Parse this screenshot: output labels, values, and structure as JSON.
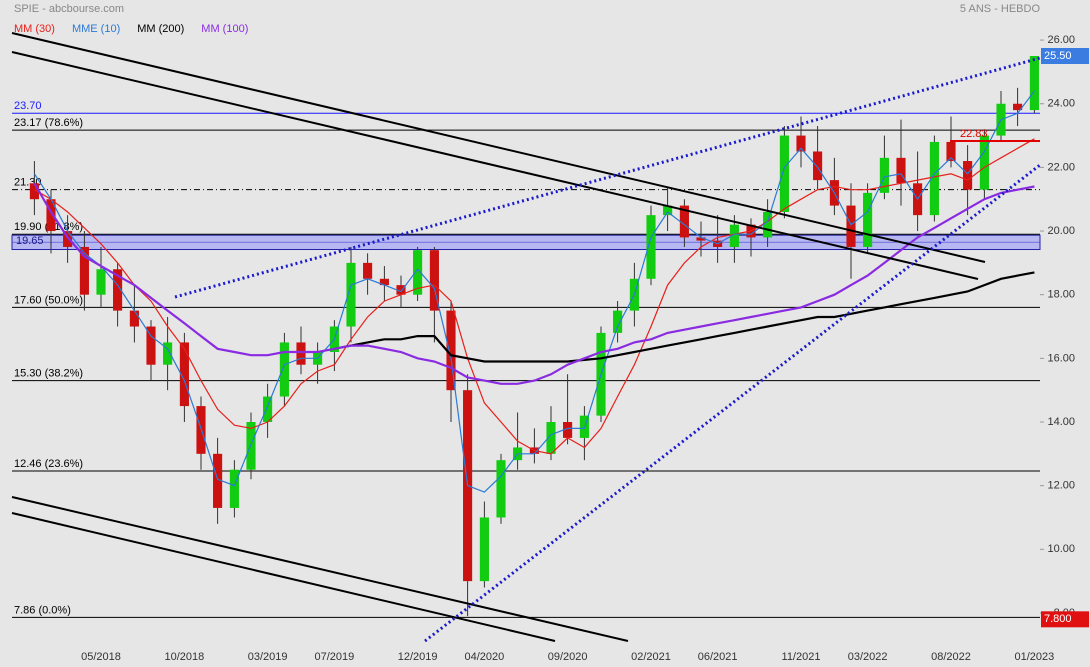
{
  "chart_data": {
    "type": "candlestick",
    "title": "SPIE - abcbourse.com",
    "subtitle": "5 ANS - HEBDO",
    "up_color": "#11cc11",
    "down_color": "#cc1111",
    "x": [
      2018.042,
      2018.125,
      2018.208,
      2018.292,
      2018.375,
      2018.458,
      2018.542,
      2018.625,
      2018.708,
      2018.792,
      2018.875,
      2018.958,
      2019.042,
      2019.125,
      2019.208,
      2019.292,
      2019.375,
      2019.458,
      2019.542,
      2019.625,
      2019.708,
      2019.792,
      2019.875,
      2019.958,
      2020.042,
      2020.125,
      2020.208,
      2020.292,
      2020.375,
      2020.458,
      2020.542,
      2020.625,
      2020.708,
      2020.792,
      2020.875,
      2020.958,
      2021.042,
      2021.125,
      2021.208,
      2021.292,
      2021.375,
      2021.458,
      2021.542,
      2021.625,
      2021.708,
      2021.792,
      2021.875,
      2021.958,
      2022.042,
      2022.125,
      2022.208,
      2022.292,
      2022.375,
      2022.458,
      2022.542,
      2022.625,
      2022.708,
      2022.792,
      2022.875,
      2022.958,
      2023.042
    ],
    "open": [
      21.5,
      21.0,
      20.0,
      19.5,
      18.0,
      18.8,
      17.5,
      17.0,
      15.8,
      16.5,
      14.5,
      13.0,
      11.3,
      12.5,
      14.0,
      14.8,
      16.5,
      15.8,
      16.2,
      17.0,
      19.0,
      18.5,
      18.3,
      18.0,
      19.4,
      17.5,
      15.0,
      9.0,
      11.0,
      12.8,
      13.2,
      13.0,
      14.0,
      13.5,
      14.2,
      16.8,
      17.5,
      18.5,
      20.5,
      20.8,
      19.8,
      19.7,
      19.5,
      20.2,
      19.8,
      20.6,
      23.0,
      22.5,
      21.6,
      20.8,
      19.5,
      21.2,
      22.3,
      21.5,
      20.5,
      22.8,
      22.2,
      21.3,
      23.0,
      24.0,
      23.8
    ],
    "high": [
      22.2,
      21.3,
      20.5,
      20.0,
      19.5,
      19.0,
      18.3,
      17.2,
      17.3,
      16.8,
      14.8,
      13.5,
      12.8,
      14.3,
      15.2,
      16.8,
      17.0,
      16.5,
      17.2,
      19.5,
      19.3,
      18.9,
      18.6,
      19.5,
      19.5,
      17.8,
      15.5,
      11.5,
      13.0,
      14.3,
      13.8,
      14.5,
      15.5,
      14.5,
      17.0,
      17.8,
      19.0,
      20.8,
      21.4,
      21.0,
      20.3,
      20.5,
      20.5,
      20.4,
      21.0,
      23.3,
      23.6,
      23.3,
      22.3,
      21.5,
      21.5,
      23.0,
      23.5,
      22.5,
      23.0,
      23.6,
      22.7,
      23.2,
      24.4,
      24.5,
      25.5
    ],
    "low": [
      20.5,
      19.3,
      19.0,
      17.5,
      17.6,
      17.0,
      16.5,
      15.3,
      15.0,
      14.0,
      12.5,
      10.8,
      11.0,
      12.2,
      13.5,
      14.5,
      15.5,
      15.2,
      15.6,
      16.5,
      18.0,
      17.8,
      17.6,
      17.8,
      16.5,
      14.0,
      7.9,
      8.8,
      10.8,
      12.5,
      12.7,
      12.8,
      13.3,
      12.8,
      14.0,
      16.5,
      17.0,
      18.3,
      20.0,
      19.5,
      19.2,
      19.0,
      19.0,
      19.2,
      19.5,
      20.4,
      22.0,
      21.3,
      20.5,
      18.5,
      19.3,
      21.0,
      20.8,
      20.0,
      20.3,
      22.0,
      20.5,
      21.0,
      22.8,
      23.3,
      23.7
    ],
    "close": [
      21.0,
      20.0,
      19.5,
      18.0,
      18.8,
      17.5,
      17.0,
      15.8,
      16.5,
      14.5,
      13.0,
      11.3,
      12.5,
      14.0,
      14.8,
      16.5,
      15.8,
      16.2,
      17.0,
      19.0,
      18.5,
      18.3,
      18.0,
      19.4,
      17.5,
      15.0,
      9.0,
      11.0,
      12.8,
      13.2,
      13.0,
      14.0,
      13.5,
      14.2,
      16.8,
      17.5,
      18.5,
      20.5,
      20.8,
      19.8,
      19.7,
      19.5,
      20.2,
      19.8,
      20.6,
      23.0,
      22.5,
      21.6,
      20.8,
      19.5,
      21.2,
      22.3,
      21.5,
      20.5,
      22.8,
      22.2,
      21.3,
      23.0,
      24.0,
      23.8,
      25.5
    ],
    "series": [
      {
        "name": "MM (30)",
        "color": "#e8201a",
        "values": [
          21.3,
          21.0,
          20.6,
          20.1,
          19.6,
          19.0,
          18.3,
          17.8,
          17.0,
          16.3,
          15.3,
          14.4,
          13.9,
          13.8,
          14.0,
          14.5,
          15.2,
          15.6,
          15.8,
          16.6,
          17.3,
          17.8,
          18.0,
          18.2,
          18.3,
          17.8,
          16.0,
          14.6,
          14.0,
          13.4,
          13.1,
          13.0,
          13.5,
          13.2,
          13.8,
          14.8,
          15.8,
          17.0,
          18.3,
          19.0,
          19.5,
          19.8,
          19.9,
          20.0,
          20.3,
          20.7,
          21.0,
          21.3,
          21.4,
          21.3,
          21.3,
          21.4,
          21.5,
          21.6,
          21.7,
          21.8,
          21.6,
          22.0,
          22.3,
          22.6,
          22.9
        ]
      },
      {
        "name": "MME (10)",
        "color": "#2a7ad6",
        "values": [
          21.8,
          21.0,
          20.0,
          19.3,
          18.9,
          18.3,
          17.5,
          16.7,
          16.3,
          15.3,
          13.8,
          12.2,
          12.0,
          13.3,
          14.5,
          15.8,
          16.0,
          16.0,
          16.6,
          18.3,
          18.5,
          18.3,
          18.1,
          18.8,
          18.2,
          16.0,
          12.0,
          11.8,
          12.3,
          13.0,
          13.0,
          13.6,
          13.8,
          13.8,
          15.5,
          17.0,
          18.0,
          19.8,
          20.6,
          20.2,
          19.8,
          19.6,
          19.9,
          19.9,
          20.3,
          22.0,
          22.6,
          22.0,
          21.2,
          20.2,
          20.6,
          21.7,
          21.8,
          21.0,
          21.8,
          22.3,
          21.8,
          22.5,
          23.5,
          23.7,
          24.4
        ]
      },
      {
        "name": "MM (200)",
        "color": "#000000",
        "values": [
          null,
          null,
          null,
          null,
          null,
          null,
          null,
          null,
          null,
          null,
          null,
          null,
          null,
          null,
          null,
          null,
          null,
          null,
          16.3,
          16.4,
          16.5,
          16.6,
          16.6,
          16.7,
          16.7,
          16.1,
          16.0,
          15.9,
          15.9,
          15.9,
          15.9,
          15.9,
          15.9,
          15.95,
          16.0,
          16.1,
          16.2,
          16.3,
          16.4,
          16.5,
          16.6,
          16.7,
          16.8,
          16.9,
          17.0,
          17.1,
          17.2,
          17.3,
          17.3,
          17.4,
          17.5,
          17.6,
          17.7,
          17.8,
          17.9,
          18.0,
          18.1,
          18.3,
          18.5,
          18.6,
          18.7
        ]
      },
      {
        "name": "MM (100)",
        "color": "#8a2be2",
        "values": [
          21.5,
          20.6,
          19.8,
          19.2,
          18.9,
          18.6,
          18.3,
          17.9,
          17.5,
          17.1,
          16.7,
          16.3,
          16.2,
          16.1,
          16.1,
          16.2,
          16.2,
          16.2,
          16.3,
          16.4,
          16.4,
          16.3,
          16.2,
          16.0,
          15.9,
          15.7,
          15.4,
          15.3,
          15.2,
          15.2,
          15.3,
          15.5,
          15.8,
          16.0,
          16.2,
          16.3,
          16.5,
          16.6,
          16.8,
          16.9,
          17.0,
          17.1,
          17.2,
          17.3,
          17.4,
          17.5,
          17.6,
          17.8,
          18.0,
          18.3,
          18.6,
          19.0,
          19.4,
          19.8,
          20.1,
          20.4,
          20.7,
          21.0,
          21.2,
          21.3,
          21.4
        ]
      }
    ],
    "xlim": [
      2017.92,
      2023.06
    ],
    "ylim": [
      7.15,
      26.38
    ],
    "xticks": [
      {
        "value": 2018.375,
        "label": "05/2018"
      },
      {
        "value": 2018.792,
        "label": "10/2018"
      },
      {
        "value": 2019.208,
        "label": "03/2019"
      },
      {
        "value": 2019.542,
        "label": "07/2019"
      },
      {
        "value": 2019.958,
        "label": "12/2019"
      },
      {
        "value": 2020.292,
        "label": "04/2020"
      },
      {
        "value": 2020.708,
        "label": "09/2020"
      },
      {
        "value": 2021.125,
        "label": "02/2021"
      },
      {
        "value": 2021.458,
        "label": "06/2021"
      },
      {
        "value": 2021.875,
        "label": "11/2021"
      },
      {
        "value": 2022.208,
        "label": "03/2022"
      },
      {
        "value": 2022.625,
        "label": "08/2022"
      },
      {
        "value": 2023.042,
        "label": "01/2023"
      }
    ],
    "yticks": [
      {
        "value": 8,
        "label": "8.00"
      },
      {
        "value": 10,
        "label": "10.00"
      },
      {
        "value": 12,
        "label": "12.00"
      },
      {
        "value": 14,
        "label": "14.00"
      },
      {
        "value": 16,
        "label": "16.00"
      },
      {
        "value": 18,
        "label": "18.00"
      },
      {
        "value": 20,
        "label": "20.00"
      },
      {
        "value": 22,
        "label": "22.00"
      },
      {
        "value": 24,
        "label": "24.00"
      },
      {
        "value": 26,
        "label": "26.00"
      }
    ],
    "levels": [
      {
        "value": 23.7,
        "label": "23.70",
        "color": "#1a1aff",
        "style": "solid"
      },
      {
        "value": 23.17,
        "label": "23.17 (78.6%)",
        "color": "#000000",
        "style": "solid"
      },
      {
        "value": 21.3,
        "label": "21.30",
        "color": "#000000",
        "style": "dashdot"
      },
      {
        "value": 19.9,
        "label": "19.90 (61.8%)",
        "color": "#000000",
        "style": "solid"
      },
      {
        "value": 17.6,
        "label": "17.60 (50.0%)",
        "color": "#000000",
        "style": "solid"
      },
      {
        "value": 15.3,
        "label": "15.30 (38.2%)",
        "color": "#000000",
        "style": "solid"
      },
      {
        "value": 12.46,
        "label": "12.46 (23.6%)",
        "color": "#000000",
        "style": "solid"
      },
      {
        "value": 7.86,
        "label": "7.86  (0.0%)",
        "color": "#000000",
        "style": "solid"
      }
    ],
    "band": {
      "low": 19.42,
      "high": 19.87,
      "value": 19.65,
      "label": "19.65",
      "color": "#7f7fff"
    },
    "marker": {
      "value": 22.83,
      "label": "22.83",
      "color": "#e00000"
    },
    "last_price": {
      "value": 25.5,
      "label": "25.50",
      "color": "#3a7ce0"
    },
    "low_price": {
      "value": 7.8,
      "label": "7.800",
      "color": "#e01010"
    }
  }
}
